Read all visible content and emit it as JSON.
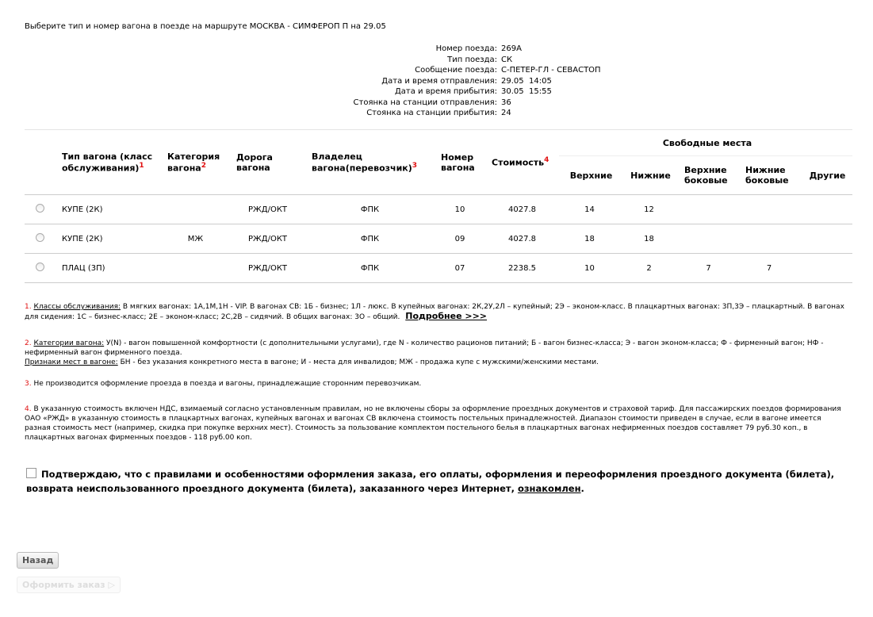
{
  "title": "Выберите тип и номер вагона в поезде на маршруте МОСКВА - СИМФЕРОП П на 29.05",
  "train_info": [
    {
      "label": "Номер поезда:",
      "value": "269А"
    },
    {
      "label": "Тип поезда:",
      "value": "СК"
    },
    {
      "label": "Сообщение поезда:",
      "value": "С-ПЕТЕР-ГЛ - СЕВАСТОП"
    },
    {
      "label": "Дата и время отправления:",
      "value": "29.05  14:05"
    },
    {
      "label": "Дата и время прибытия:",
      "value": "30.05  15:55"
    },
    {
      "label": "Стоянка на станции отправления:",
      "value": "36"
    },
    {
      "label": "Стоянка на станции прибытия:",
      "value": "24"
    }
  ],
  "table": {
    "headers": {
      "type": "Тип вагона (класс обслуживания)",
      "type_sup": "1",
      "category": "Категория вагона",
      "category_sup": "2",
      "road": "Дорога вагона",
      "owner": "Владелец вагона(перевозчик)",
      "owner_sup": "3",
      "number": "Номер вагона",
      "cost": "Стоимость",
      "cost_sup": "4",
      "free": "Свободные места",
      "upper": "Верхние",
      "lower": "Нижние",
      "upper_side": "Верхние боковые",
      "lower_side": "Нижние боковые",
      "other": "Другие"
    },
    "rows": [
      {
        "type": "КУПЕ  (2К)",
        "category": "",
        "road": "РЖД/ОКТ",
        "owner": "ФПК",
        "number": "10",
        "cost": "4027.8",
        "upper": "14",
        "lower": "12",
        "upper_side": "",
        "lower_side": "",
        "other": ""
      },
      {
        "type": "КУПЕ  (2К)",
        "category": "МЖ",
        "road": "РЖД/ОКТ",
        "owner": "ФПК",
        "number": "09",
        "cost": "4027.8",
        "upper": "18",
        "lower": "18",
        "upper_side": "",
        "lower_side": "",
        "other": ""
      },
      {
        "type": "ПЛАЦ  (3П)",
        "category": "",
        "road": "РЖД/ОКТ",
        "owner": "ФПК",
        "number": "07",
        "cost": "2238.5",
        "upper": "10",
        "lower": "2",
        "upper_side": "7",
        "lower_side": "7",
        "other": ""
      }
    ]
  },
  "footnotes": {
    "n1": "1.",
    "n1_title": "Классы обслуживания:",
    "n1_text": " В мягких вагонах: 1А,1М,1Н - VIP. В вагонах СВ: 1Б - бизнес; 1Л - люкс. В купейных вагонах: 2К,2У,2Л – купейный; 2Э – эконом-класс. В плацкартных вагонах: 3П,3Э – плацкартный. В вагонах для сидения: 1С – бизнес-класс; 2Е – эконом-класс; 2С,2В – сидячий. В общих вагонах: 3О – общий.",
    "more": "Подробнее >>>",
    "n2": "2.",
    "n2_title": "Категории вагона:",
    "n2_text": " У(N) - вагон повышенной комфортности (с дополнительными услугами), где N - количество рационов питаний; Б - вагон бизнес-класса; Э - вагон эконом-класса; Ф - фирменный вагон; НФ - нефирменный вагон фирменного поезда.",
    "signs_title": "Признаки мест в вагоне:",
    "signs_text": " БН - без указания конкретного места в вагоне; И - места для инвалидов; МЖ - продажа купе с мужскими/женскими местами.",
    "n3": "3.",
    "n3_text": " Не производится оформление проезда в поезда и вагоны, принадлежащие сторонним перевозчикам.",
    "n4": "4.",
    "n4_text": " В указанную стоимость включен НДС, взимаемый согласно установленным правилам, но не включены сборы за оформление проездных документов и страховой тариф. Для пассажирских поездов формирования ОАО «РЖД» в указанную стоимость в плацкартных вагонах, купейных вагонах и вагонах СВ включена стоимость постельных принадлежностей. Диапазон стоимости приведен в случае, если в вагоне имеется разная стоимость мест (например, скидка при покупке верхних мест). Стоимость за пользование комплектом постельного белья в плацкартных вагонах нефирменных поездов составляет 79 руб.30 коп., в плацкартных вагонах фирменных поездов - 118 руб.00 коп."
  },
  "confirm": {
    "text": "Подтверждаю, что с правилами и особенностями оформления заказа, его оплаты, оформления и переоформления проездного документа (билета), возврата неиспользованного проездного документа (билета), заказанного через Интернет, ",
    "link": "ознакомлен",
    "end": ".",
    "checked": false
  },
  "buttons": {
    "back": "Назад",
    "order": "Оформить заказ"
  }
}
